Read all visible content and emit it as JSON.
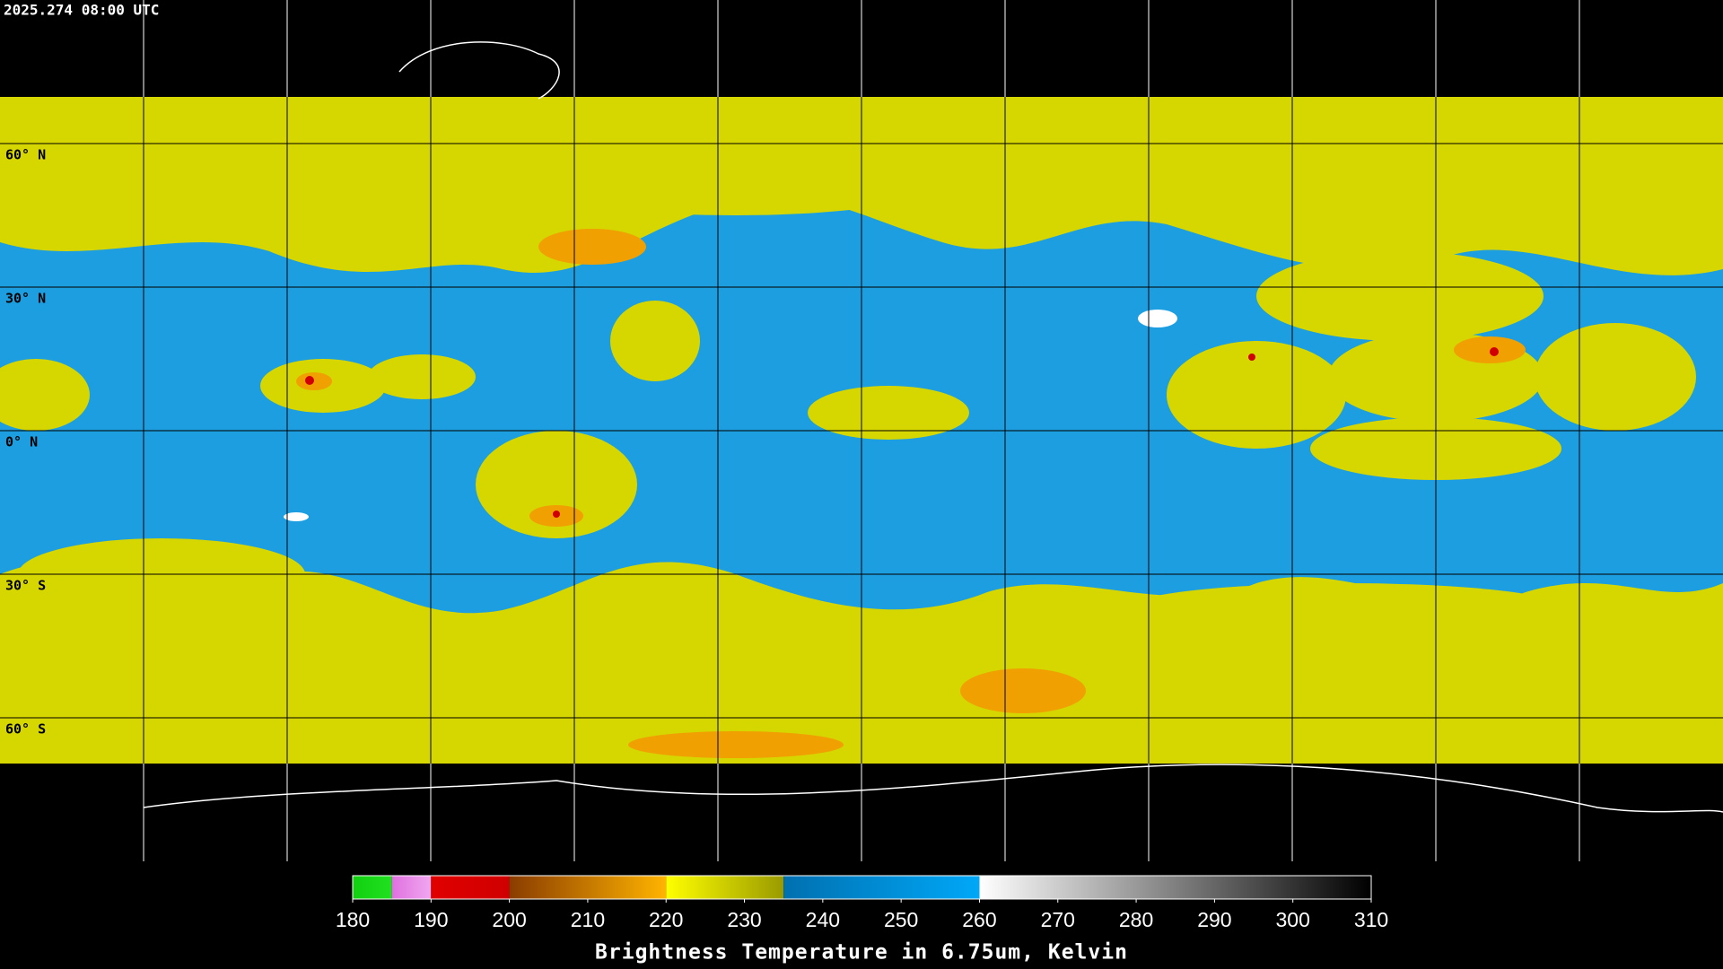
{
  "timestamp": "2025.274 08:00 UTC",
  "lat_labels": [
    {
      "label": "60° N",
      "lat": 60
    },
    {
      "label": "30° N",
      "lat": 30
    },
    {
      "label": "0° N",
      "lat": 0
    },
    {
      "label": "30° S",
      "lat": -30
    },
    {
      "label": "60° S",
      "lat": -60
    }
  ],
  "longitude_lines": [
    -150,
    -120,
    -90,
    -60,
    -30,
    0,
    30,
    60,
    90,
    120,
    150
  ],
  "colorbar": {
    "title": "Brightness Temperature in 6.75um, Kelvin",
    "range": [
      180,
      310
    ],
    "ticks": [
      180,
      190,
      200,
      210,
      220,
      230,
      240,
      250,
      260,
      270,
      280,
      290,
      300,
      310
    ],
    "segments": [
      {
        "from": 180,
        "to": 185,
        "colors": [
          "#10d010",
          "#20e020"
        ]
      },
      {
        "from": 185,
        "to": 190,
        "colors": [
          "#e070e0",
          "#f0a8f0"
        ]
      },
      {
        "from": 190,
        "to": 200,
        "colors": [
          "#e00000",
          "#d00000"
        ]
      },
      {
        "from": 200,
        "to": 220,
        "colors": [
          "#8a3c00",
          "#ffb400"
        ]
      },
      {
        "from": 220,
        "to": 235,
        "colors": [
          "#ffff00",
          "#9a9a00"
        ]
      },
      {
        "from": 235,
        "to": 260,
        "colors": [
          "#0070b0",
          "#00a8f8"
        ]
      },
      {
        "from": 260,
        "to": 310,
        "colors": [
          "#ffffff",
          "#000000"
        ]
      }
    ]
  }
}
